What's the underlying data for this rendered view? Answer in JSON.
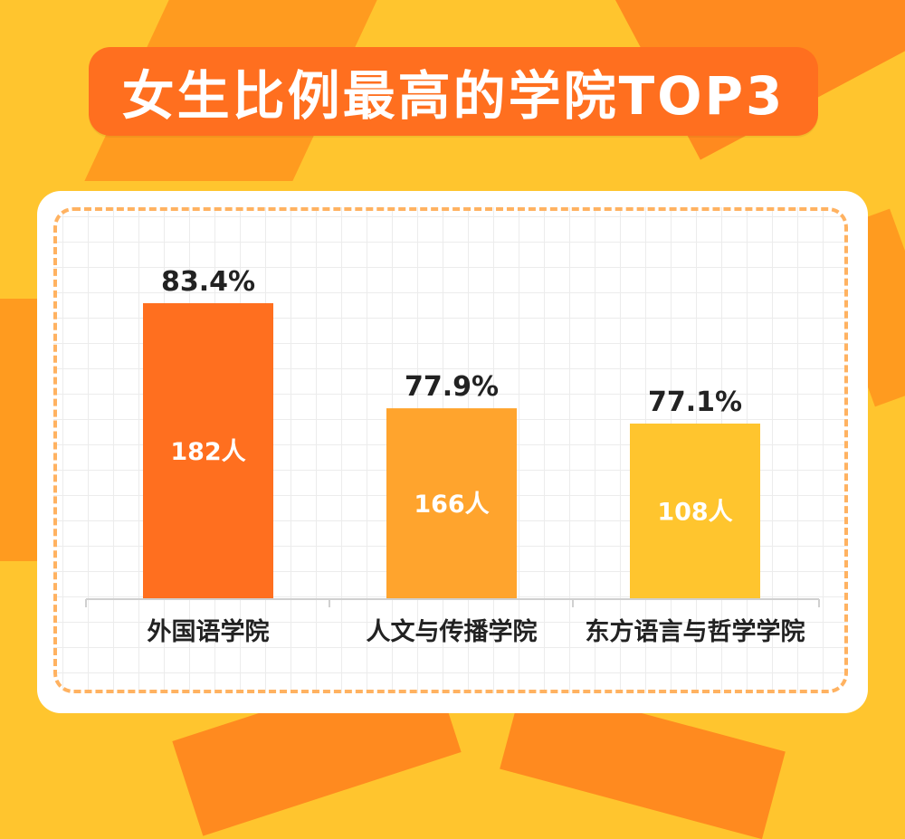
{
  "title": "女生比例最高的学院TOP3",
  "colors": {
    "background": "#ffc52e",
    "banner": "#ff6f1f",
    "bar1": "#ff6f1f",
    "bar2": "#ffa42d",
    "bar3": "#ffc52e"
  },
  "chart_data": {
    "type": "bar",
    "title": "女生比例最高的学院TOP3",
    "categories": [
      "外国语学院",
      "人文与传播学院",
      "东方语言与哲学学院"
    ],
    "series": [
      {
        "values": [
          83.4,
          77.9,
          77.1
        ],
        "value_labels": [
          "83.4%",
          "77.9%",
          "77.1%"
        ],
        "count_labels": [
          "182人",
          "166人",
          "108人"
        ]
      }
    ],
    "grid": true,
    "legend": "none"
  }
}
